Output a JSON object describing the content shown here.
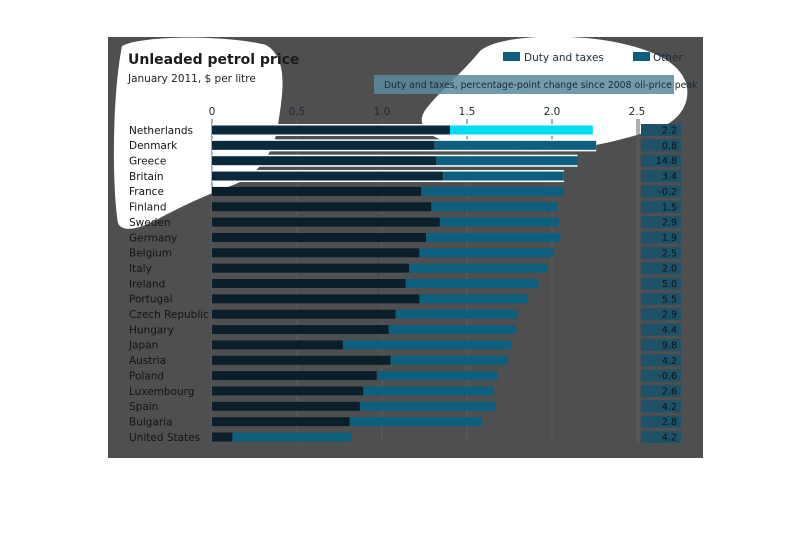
{
  "chart_data": {
    "type": "bar",
    "stacked": true,
    "orientation": "horizontal",
    "title": "Unleaded petrol price",
    "subtitle": "January 2011, $ per litre",
    "xlim": [
      0,
      2.5
    ],
    "xticks": [
      "0",
      "0.5",
      "1.0",
      "1.5",
      "2.0",
      "2.5"
    ],
    "categories": [
      "Netherlands",
      "Denmark",
      "Greece",
      "Britain",
      "France",
      "Finland",
      "Sweden",
      "Germany",
      "Belgium",
      "Italy",
      "Ireland",
      "Portugal",
      "Czech Republic",
      "Hungary",
      "Japan",
      "Austria",
      "Poland",
      "Luxembourg",
      "Spain",
      "Bulgaria",
      "United States"
    ],
    "series": [
      {
        "name": "Duty and taxes",
        "values": [
          1.4,
          1.31,
          1.32,
          1.36,
          1.23,
          1.29,
          1.34,
          1.26,
          1.22,
          1.16,
          1.14,
          1.22,
          1.08,
          1.04,
          0.77,
          1.05,
          0.97,
          0.89,
          0.87,
          0.81,
          0.12
        ]
      },
      {
        "name": "Other",
        "values": [
          0.84,
          0.95,
          0.83,
          0.71,
          0.84,
          0.74,
          0.7,
          0.79,
          0.79,
          0.81,
          0.78,
          0.64,
          0.72,
          0.75,
          0.99,
          0.69,
          0.71,
          0.77,
          0.8,
          0.78,
          0.7
        ]
      }
    ],
    "side_note": "Duty and taxes, percentage-point change since 2008 oil-price peak",
    "side_values": [
      "2.2",
      "0.8",
      "14.8",
      "3.4",
      "-0.2",
      "1.5",
      "2.9",
      "1.9",
      "2.5",
      "2.0",
      "5.0",
      "5.5",
      "2.9",
      "4.4",
      "9.8",
      "4.2",
      "-0.6",
      "2.6",
      "4.2",
      "2.8",
      "4.2"
    ],
    "colors": {
      "background": "#4f4f4f",
      "duty": "#0b1f2b",
      "other": "#0c5f7e",
      "side_box": "#1d5268",
      "note_box": "#5a8a9c",
      "highlight": "#ffffff",
      "highlight_bar_other": "#00ddf0"
    },
    "legend_position": "top-right",
    "grid": true
  }
}
